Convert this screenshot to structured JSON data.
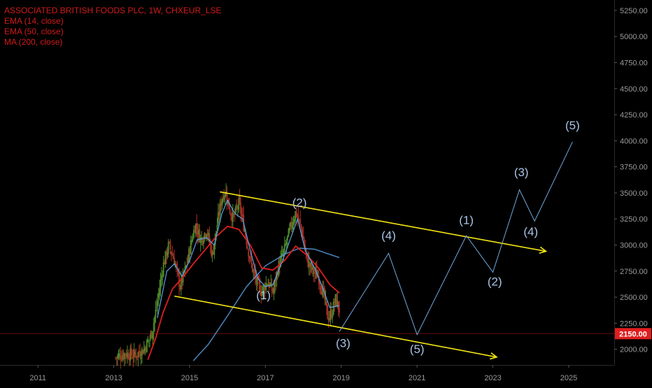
{
  "chart_data": {
    "type": "line",
    "title": "ASSOCIATED BRITISH FOODS PLC, 1W, CHXEUR_LSE",
    "indicators": [
      "EMA (14, close)",
      "EMA (50, close)",
      "MA (200, close)"
    ],
    "x_ticks": [
      "2011",
      "2013",
      "2015",
      "2017",
      "2019",
      "2021",
      "2023",
      "2025"
    ],
    "y_ticks": [
      "2000.00",
      "2250.00",
      "2500.00",
      "2750.00",
      "3000.00",
      "3250.00",
      "3500.00",
      "3750.00",
      "4000.00",
      "4250.00",
      "4500.00",
      "4750.00",
      "5000.00",
      "5250.00"
    ],
    "xlim": [
      2010.0,
      2026.2
    ],
    "ylim": [
      1850,
      5350
    ],
    "current_price": {
      "value": 2150,
      "label": "2150.00",
      "color": "#e01e1e"
    },
    "colors": {
      "background": "#000000",
      "candle_up": "#4d8a2a",
      "candle_down": "#a83225",
      "ema14": "#5ba3e6",
      "ema50": "#e01e1e",
      "ma200": "#5ba3e6",
      "trendline": "#f5e614",
      "projection": "#6fa8dc",
      "wave_label": "#a9c4e6",
      "axis_text": "#9a9a9a",
      "legend_text": "#d21b1b"
    },
    "price_series": [
      {
        "x": 2013.05,
        "y": 1920
      },
      {
        "x": 2013.3,
        "y": 1960
      },
      {
        "x": 2013.55,
        "y": 1940
      },
      {
        "x": 2013.8,
        "y": 2000
      },
      {
        "x": 2014.0,
        "y": 2150
      },
      {
        "x": 2014.15,
        "y": 2450
      },
      {
        "x": 2014.3,
        "y": 2800
      },
      {
        "x": 2014.45,
        "y": 3000
      },
      {
        "x": 2014.6,
        "y": 2850
      },
      {
        "x": 2014.75,
        "y": 2600
      },
      {
        "x": 2014.9,
        "y": 2780
      },
      {
        "x": 2015.0,
        "y": 2950
      },
      {
        "x": 2015.15,
        "y": 3200
      },
      {
        "x": 2015.3,
        "y": 3050
      },
      {
        "x": 2015.45,
        "y": 3150
      },
      {
        "x": 2015.6,
        "y": 2900
      },
      {
        "x": 2015.75,
        "y": 3250
      },
      {
        "x": 2015.85,
        "y": 3450
      },
      {
        "x": 2015.95,
        "y": 3520
      },
      {
        "x": 2016.05,
        "y": 3350
      },
      {
        "x": 2016.15,
        "y": 3250
      },
      {
        "x": 2016.3,
        "y": 3400
      },
      {
        "x": 2016.45,
        "y": 3150
      },
      {
        "x": 2016.6,
        "y": 2850
      },
      {
        "x": 2016.75,
        "y": 2650
      },
      {
        "x": 2016.9,
        "y": 2550
      },
      {
        "x": 2017.05,
        "y": 2650
      },
      {
        "x": 2017.2,
        "y": 2550
      },
      {
        "x": 2017.35,
        "y": 2800
      },
      {
        "x": 2017.5,
        "y": 2950
      },
      {
        "x": 2017.65,
        "y": 3150
      },
      {
        "x": 2017.8,
        "y": 3320
      },
      {
        "x": 2017.95,
        "y": 3150
      },
      {
        "x": 2018.1,
        "y": 2850
      },
      {
        "x": 2018.25,
        "y": 2750
      },
      {
        "x": 2018.4,
        "y": 2700
      },
      {
        "x": 2018.55,
        "y": 2500
      },
      {
        "x": 2018.65,
        "y": 2300
      },
      {
        "x": 2018.75,
        "y": 2350
      },
      {
        "x": 2018.85,
        "y": 2480
      },
      {
        "x": 2018.95,
        "y": 2380
      }
    ],
    "ema14": [
      {
        "x": 2014.15,
        "y": 2300
      },
      {
        "x": 2014.4,
        "y": 2750
      },
      {
        "x": 2014.6,
        "y": 2820
      },
      {
        "x": 2014.8,
        "y": 2700
      },
      {
        "x": 2015.0,
        "y": 2850
      },
      {
        "x": 2015.2,
        "y": 3050
      },
      {
        "x": 2015.45,
        "y": 3070
      },
      {
        "x": 2015.65,
        "y": 3000
      },
      {
        "x": 2015.85,
        "y": 3300
      },
      {
        "x": 2016.0,
        "y": 3430
      },
      {
        "x": 2016.2,
        "y": 3300
      },
      {
        "x": 2016.4,
        "y": 3250
      },
      {
        "x": 2016.6,
        "y": 2950
      },
      {
        "x": 2016.8,
        "y": 2680
      },
      {
        "x": 2017.0,
        "y": 2600
      },
      {
        "x": 2017.2,
        "y": 2620
      },
      {
        "x": 2017.45,
        "y": 2850
      },
      {
        "x": 2017.7,
        "y": 3100
      },
      {
        "x": 2017.85,
        "y": 3250
      },
      {
        "x": 2018.05,
        "y": 2950
      },
      {
        "x": 2018.3,
        "y": 2780
      },
      {
        "x": 2018.5,
        "y": 2600
      },
      {
        "x": 2018.7,
        "y": 2400
      },
      {
        "x": 2018.95,
        "y": 2420
      }
    ],
    "ema50": [
      {
        "x": 2013.9,
        "y": 1900
      },
      {
        "x": 2014.1,
        "y": 2100
      },
      {
        "x": 2014.3,
        "y": 2350
      },
      {
        "x": 2014.55,
        "y": 2580
      },
      {
        "x": 2014.8,
        "y": 2680
      },
      {
        "x": 2015.1,
        "y": 2820
      },
      {
        "x": 2015.4,
        "y": 2950
      },
      {
        "x": 2015.7,
        "y": 3080
      },
      {
        "x": 2016.0,
        "y": 3180
      },
      {
        "x": 2016.3,
        "y": 3150
      },
      {
        "x": 2016.6,
        "y": 3000
      },
      {
        "x": 2016.9,
        "y": 2780
      },
      {
        "x": 2017.2,
        "y": 2760
      },
      {
        "x": 2017.5,
        "y": 2850
      },
      {
        "x": 2017.8,
        "y": 2990
      },
      {
        "x": 2018.1,
        "y": 2900
      },
      {
        "x": 2018.4,
        "y": 2780
      },
      {
        "x": 2018.7,
        "y": 2620
      },
      {
        "x": 2018.95,
        "y": 2540
      }
    ],
    "ma200": [
      {
        "x": 2015.1,
        "y": 1890
      },
      {
        "x": 2015.5,
        "y": 2050
      },
      {
        "x": 2016.0,
        "y": 2320
      },
      {
        "x": 2016.5,
        "y": 2600
      },
      {
        "x": 2017.0,
        "y": 2800
      },
      {
        "x": 2017.5,
        "y": 2910
      },
      {
        "x": 2017.9,
        "y": 2970
      },
      {
        "x": 2018.3,
        "y": 2960
      },
      {
        "x": 2018.7,
        "y": 2910
      },
      {
        "x": 2018.95,
        "y": 2880
      }
    ],
    "trendlines": [
      {
        "x1": 2015.8,
        "y1": 3510,
        "x2": 2024.4,
        "y2": 2940
      },
      {
        "x1": 2014.6,
        "y1": 2510,
        "x2": 2023.1,
        "y2": 1925
      }
    ],
    "projection": [
      {
        "x": 2018.95,
        "y": 2170
      },
      {
        "x": 2020.25,
        "y": 2920
      },
      {
        "x": 2021.0,
        "y": 2140
      },
      {
        "x": 2022.3,
        "y": 3090
      },
      {
        "x": 2023.0,
        "y": 2740
      },
      {
        "x": 2023.7,
        "y": 3530
      },
      {
        "x": 2024.1,
        "y": 3230
      },
      {
        "x": 2025.1,
        "y": 3990
      }
    ],
    "wave_labels": [
      {
        "text": "(1)",
        "x": 2016.95,
        "y": 2480
      },
      {
        "text": "(2)",
        "x": 2017.9,
        "y": 3370
      },
      {
        "text": "(3)",
        "x": 2019.05,
        "y": 2020
      },
      {
        "text": "(4)",
        "x": 2020.25,
        "y": 3055
      },
      {
        "text": "(5)",
        "x": 2021.0,
        "y": 1965
      },
      {
        "text": "(1)",
        "x": 2022.3,
        "y": 3200
      },
      {
        "text": "(2)",
        "x": 2023.05,
        "y": 2610
      },
      {
        "text": "(3)",
        "x": 2023.75,
        "y": 3660
      },
      {
        "text": "(4)",
        "x": 2024.0,
        "y": 3090
      },
      {
        "text": "(5)",
        "x": 2025.1,
        "y": 4110
      }
    ]
  }
}
